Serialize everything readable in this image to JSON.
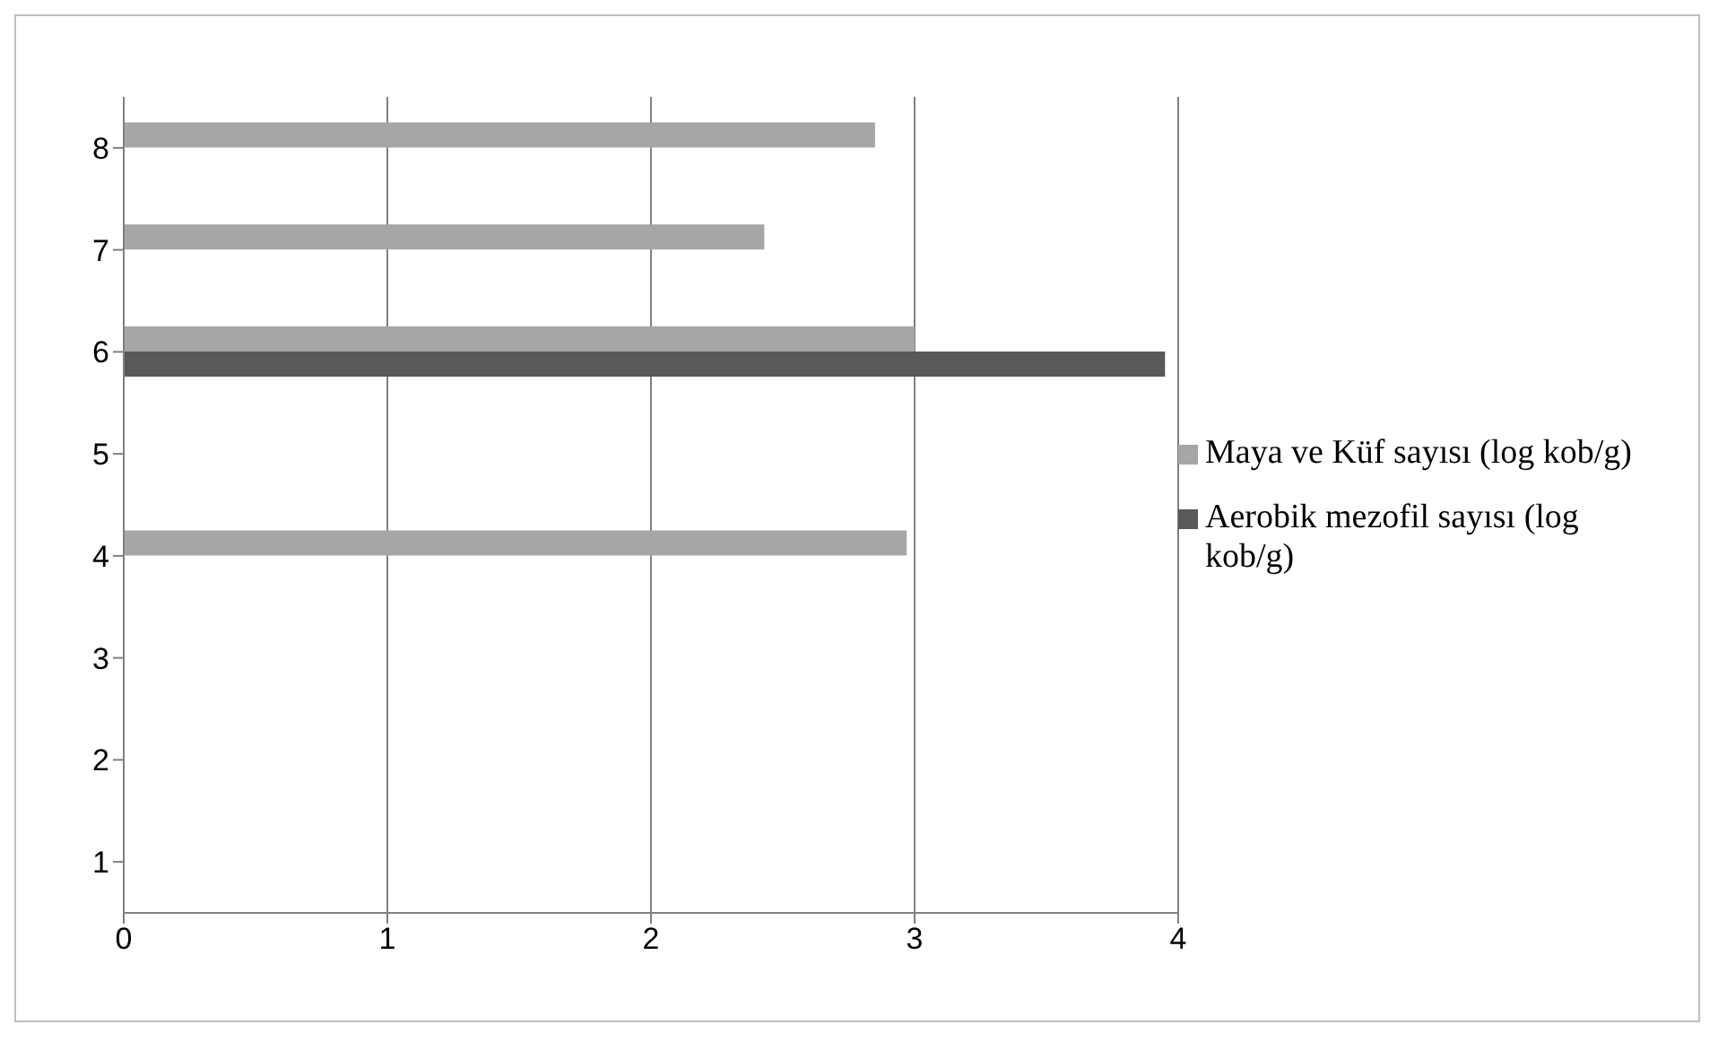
{
  "chart_data": {
    "type": "bar",
    "orientation": "horizontal",
    "categories": [
      "8",
      "7",
      "6",
      "5",
      "4",
      "3",
      "2",
      "1"
    ],
    "series": [
      {
        "name": "Maya ve Küf sayısı (log kob/g)",
        "color": "#a6a6a6",
        "values": [
          2.85,
          2.43,
          3.0,
          0,
          2.97,
          0,
          0,
          0
        ]
      },
      {
        "name": "Aerobik mezofil sayısı (log kob/g)",
        "color": "#595959",
        "values": [
          0,
          0,
          3.95,
          0,
          0,
          0,
          0,
          0
        ]
      }
    ],
    "xlim": [
      0,
      4
    ],
    "xticks": [
      0,
      1,
      2,
      3,
      4
    ],
    "grid": "x",
    "legend": "right"
  }
}
